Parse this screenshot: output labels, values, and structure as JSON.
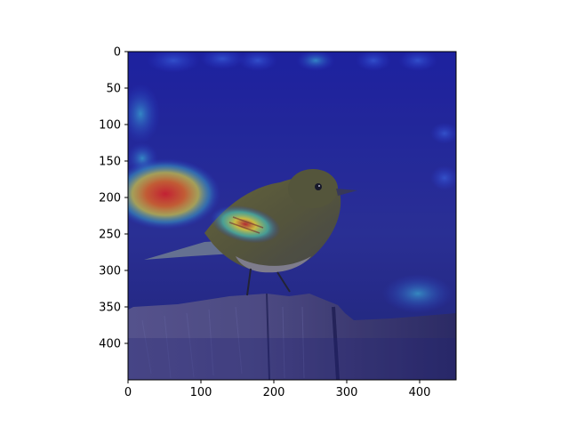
{
  "figure": {
    "xlim": [
      0,
      450
    ],
    "ylim": [
      450,
      0
    ],
    "xticks": [
      0,
      100,
      200,
      300,
      400
    ],
    "yticks": [
      0,
      50,
      100,
      150,
      200,
      250,
      300,
      350,
      400
    ],
    "image_description_icon": "bird-on-post-with-heatmap-overlay"
  }
}
